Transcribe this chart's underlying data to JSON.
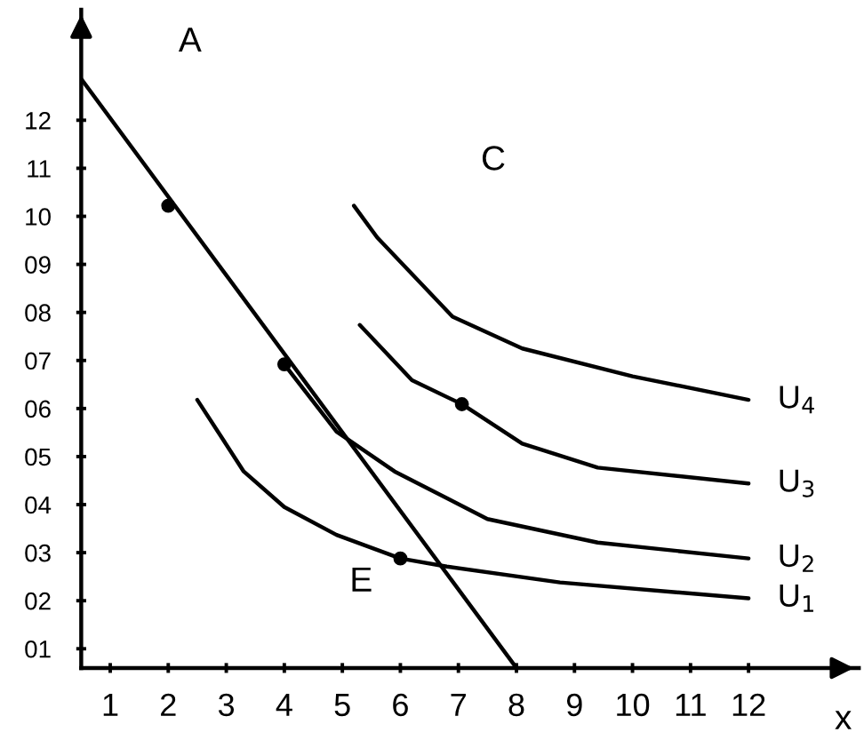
{
  "chart_data": {
    "type": "line",
    "xlabel": "x",
    "xlim": [
      0.5,
      13.9
    ],
    "ylim": [
      0.6,
      14.3
    ],
    "xticks": [
      1,
      2,
      3,
      4,
      5,
      6,
      7,
      8,
      9,
      10,
      11,
      12
    ],
    "yticks": [
      {
        "value": 1,
        "label": "01"
      },
      {
        "value": 2,
        "label": "02"
      },
      {
        "value": 3,
        "label": "03"
      },
      {
        "value": 4,
        "label": "04"
      },
      {
        "value": 5,
        "label": "05"
      },
      {
        "value": 6,
        "label": "06"
      },
      {
        "value": 7,
        "label": "07"
      },
      {
        "value": 8,
        "label": "08"
      },
      {
        "value": 9,
        "label": "09"
      },
      {
        "value": 10,
        "label": "10"
      },
      {
        "value": 11,
        "label": "11"
      },
      {
        "value": 12,
        "label": "12"
      }
    ],
    "grid": false,
    "legend": false,
    "marker": "none",
    "line_style": "solid",
    "series": [
      {
        "color": "#000000",
        "x": [
          0.5,
          8
        ],
        "values": [
          12.86,
          0.6
        ]
      },
      {
        "name": "U$_{1}$",
        "color": "#000000",
        "x": [
          2.5,
          3.3,
          4.0,
          4.9,
          6.0,
          6.8,
          8.75,
          12.0
        ],
        "values": [
          6.18,
          4.69,
          3.95,
          3.37,
          2.88,
          2.71,
          2.38,
          2.05
        ]
      },
      {
        "name": "U$_{2}$",
        "color": "#000000",
        "x": [
          4.0,
          4.9,
          5.9,
          7.5,
          9.4,
          12.0
        ],
        "values": [
          6.92,
          5.52,
          4.69,
          3.7,
          3.21,
          2.88
        ]
      },
      {
        "name": "U$_{3}$",
        "color": "#000000",
        "x": [
          5.3,
          6.2,
          7.06,
          8.1,
          9.4,
          12.0
        ],
        "values": [
          7.74,
          6.59,
          6.09,
          5.27,
          4.77,
          4.44
        ]
      },
      {
        "name": "U$_{4}$",
        "color": "#000000",
        "x": [
          5.2,
          5.6,
          6.9,
          8.1,
          10.0,
          12.0
        ],
        "values": [
          10.22,
          9.56,
          7.91,
          7.25,
          6.67,
          6.18
        ]
      },
      {
        "type": "scatter",
        "marker": "circle",
        "color": "#000000",
        "x": [
          2,
          4,
          6,
          7.06
        ],
        "values": [
          10.22,
          6.92,
          2.88,
          6.09
        ]
      }
    ],
    "annotations": [
      "A",
      "C",
      "E"
    ]
  }
}
